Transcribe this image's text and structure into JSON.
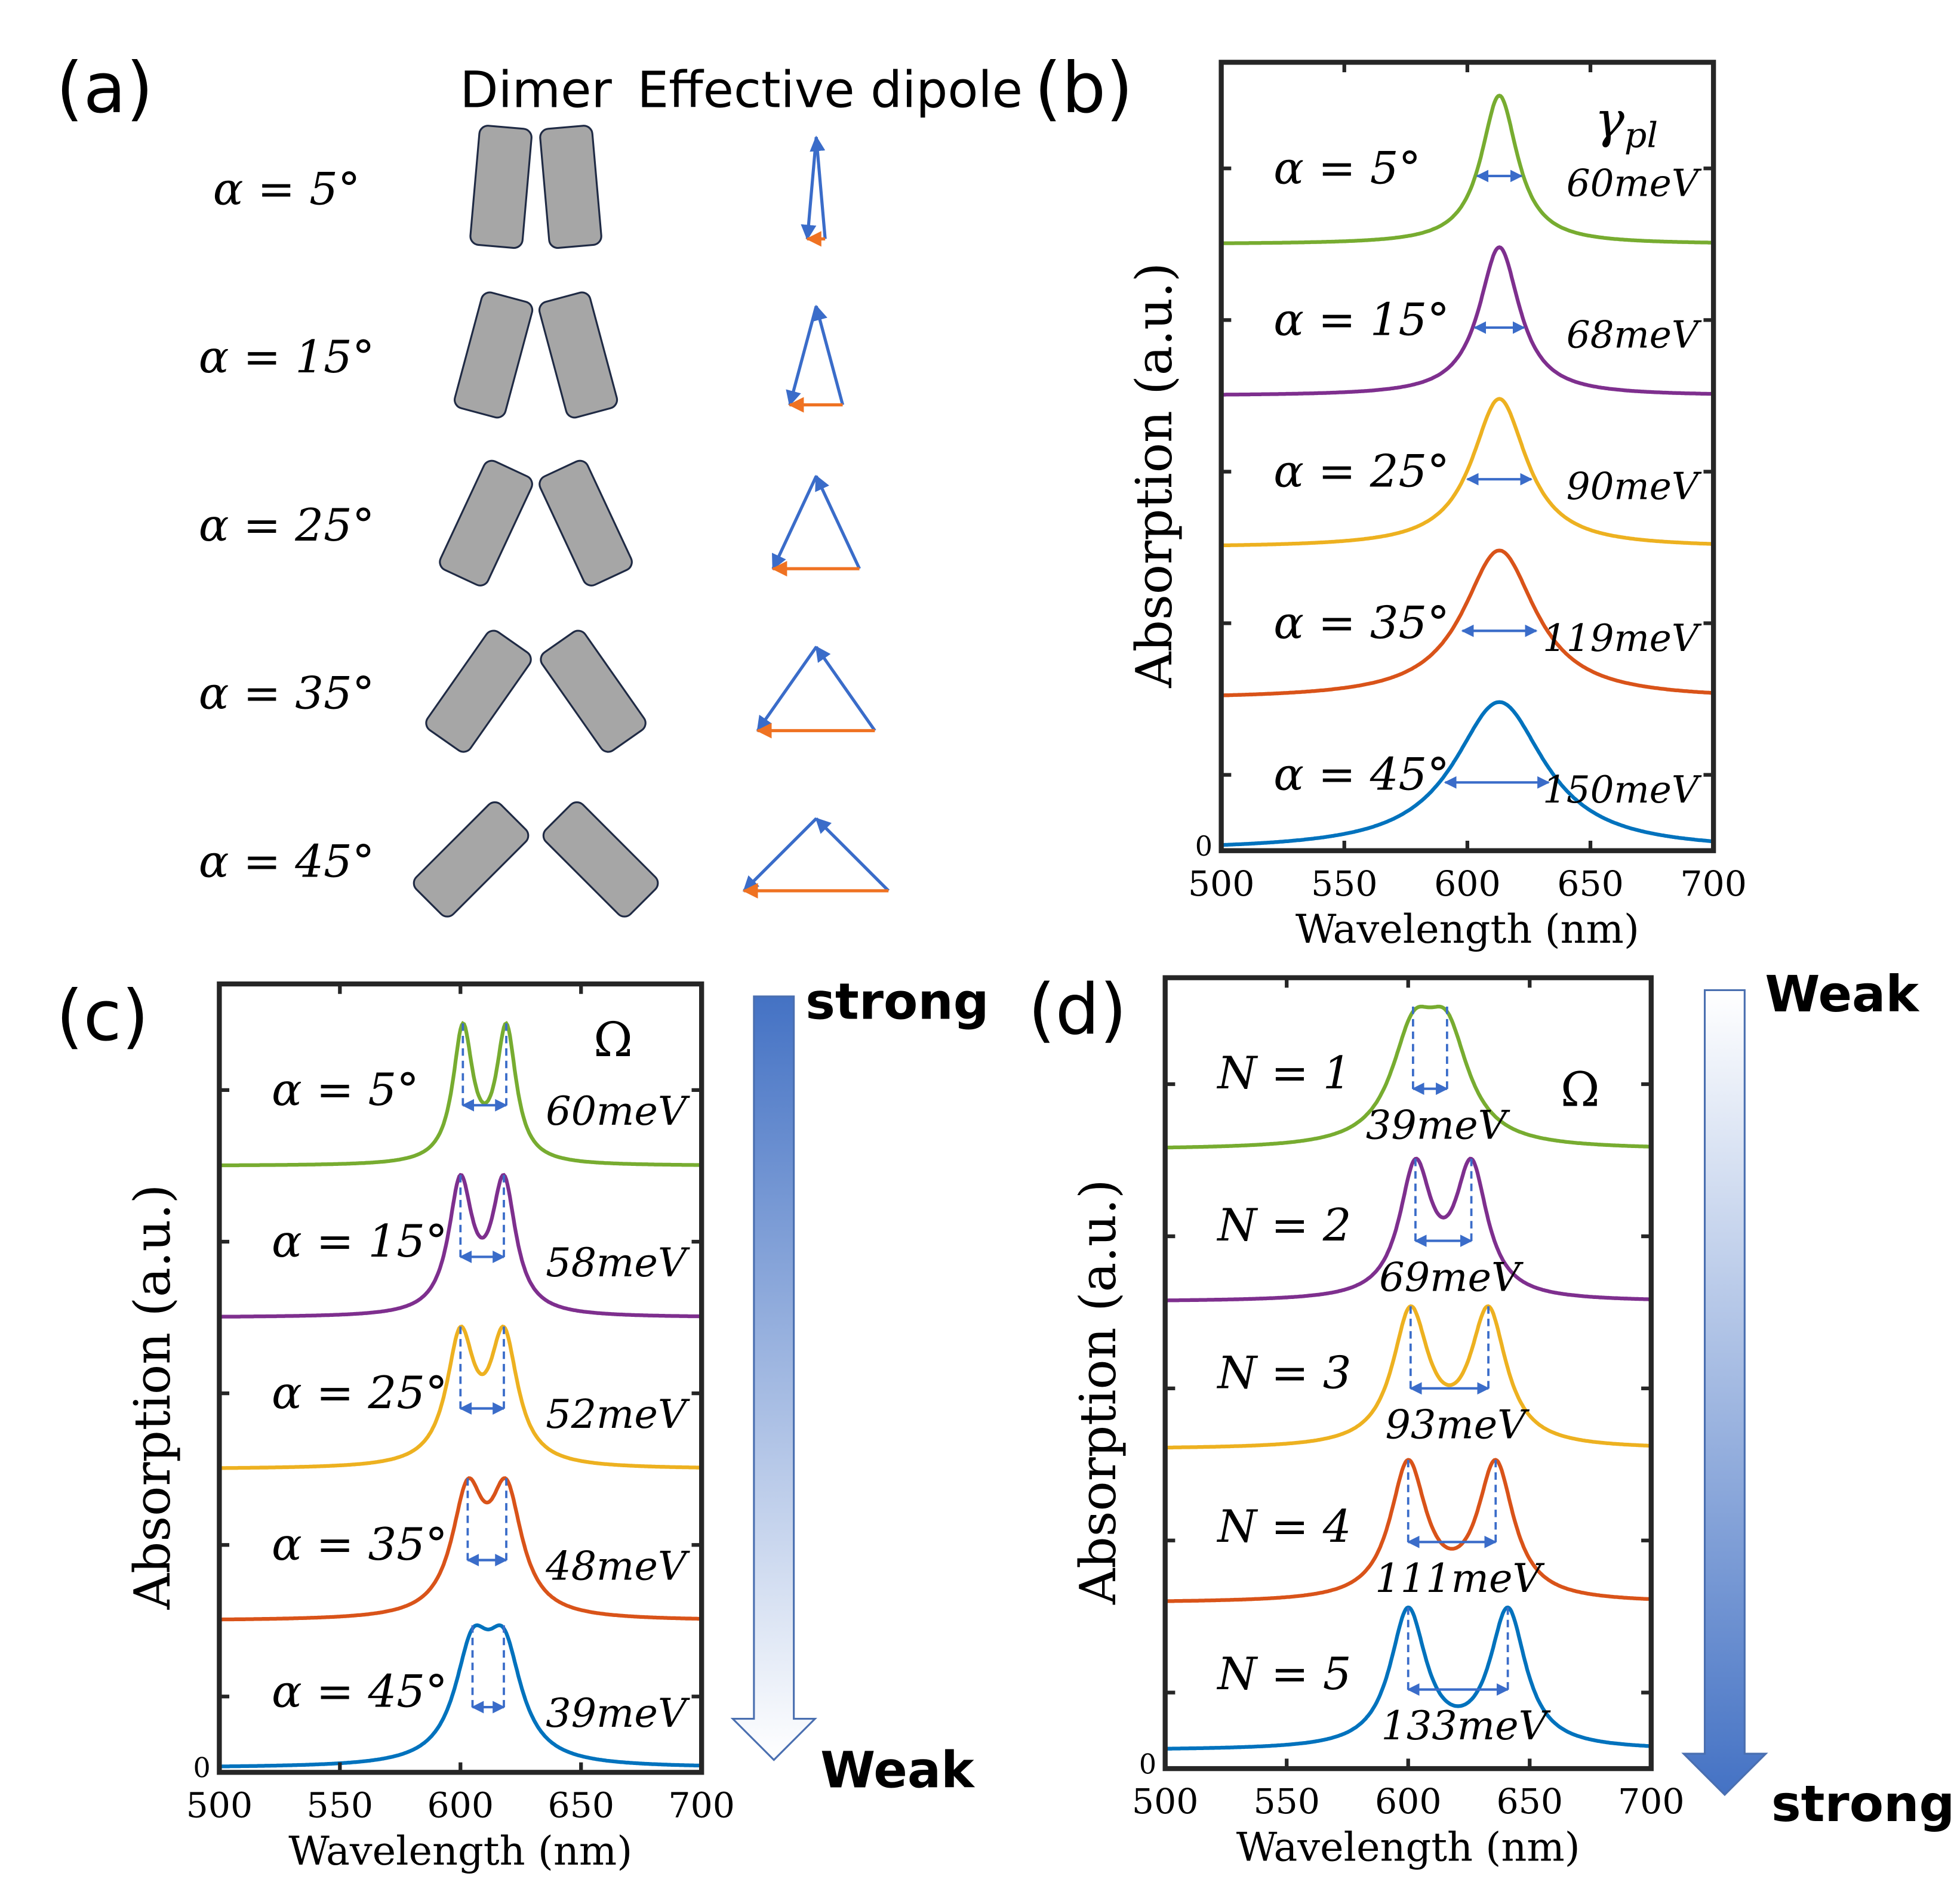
{
  "panel_labels": {
    "a": "(a)",
    "b": "(b)",
    "c": "(c)",
    "d": "(d)"
  },
  "panel_a": {
    "col_dimer": "Dimer",
    "col_dipole": "Effective dipole",
    "rows": [
      {
        "label": "α = 5°",
        "alpha": 5
      },
      {
        "label": "α = 15°",
        "alpha": 15
      },
      {
        "label": "α = 25°",
        "alpha": 25
      },
      {
        "label": "α = 35°",
        "alpha": 35
      },
      {
        "label": "α = 45°",
        "alpha": 45
      }
    ],
    "colors": {
      "rod_fill": "#a6a6a6",
      "rod_stroke": "#1f2a44",
      "dipole": "#3a6cc9",
      "net": "#ef7222"
    }
  },
  "gradient_arrows": {
    "c": {
      "top": "strong",
      "bottom": "Weak",
      "color": "#4472c4"
    },
    "d": {
      "top": "Weak",
      "bottom": "strong",
      "color": "#4472c4"
    }
  },
  "chart_data": [
    {
      "panel": "b",
      "type": "line",
      "xlabel": "Wavelength (nm)",
      "ylabel": "Absorption (a.u.)",
      "xlim": [
        500,
        700
      ],
      "xticks": [
        "500",
        "550",
        "600",
        "650",
        "700"
      ],
      "y_zero_label": "0",
      "header": {
        "symbol": "γ",
        "sub": "pl"
      },
      "series": [
        {
          "name": "α = 5°",
          "width_label": "60meV",
          "color": "#77ac30",
          "offset": 4,
          "peaks": [
            613
          ],
          "fwhm": 18,
          "marker": [
            604,
            622
          ]
        },
        {
          "name": "α = 15°",
          "width_label": "68meV",
          "color": "#7e2f8e",
          "offset": 3,
          "peaks": [
            613
          ],
          "fwhm": 20,
          "marker": [
            603,
            623
          ]
        },
        {
          "name": "α = 25°",
          "width_label": "90meV",
          "color": "#edb120",
          "offset": 2,
          "peaks": [
            613
          ],
          "fwhm": 27,
          "marker": [
            600,
            626
          ]
        },
        {
          "name": "α = 35°",
          "width_label": "119meV",
          "color": "#d95319",
          "offset": 1,
          "peaks": [
            613
          ],
          "fwhm": 36,
          "marker": [
            598,
            628
          ]
        },
        {
          "name": "α = 45°",
          "width_label": "150meV",
          "color": "#0072bd",
          "offset": 0,
          "peaks": [
            613
          ],
          "fwhm": 45,
          "marker": [
            591,
            633
          ]
        }
      ]
    },
    {
      "panel": "c",
      "type": "line",
      "xlabel": "Wavelength (nm)",
      "ylabel": "Absorption (a.u.)",
      "xlim": [
        500,
        700
      ],
      "xticks": [
        "500",
        "550",
        "600",
        "650",
        "700"
      ],
      "y_zero_label": "0",
      "header": {
        "symbol": "Ω",
        "sub": ""
      },
      "series": [
        {
          "name": "α = 5°",
          "width_label": "60meV",
          "color": "#77ac30",
          "offset": 4.0,
          "peaks": [
            601,
            619
          ],
          "fwhm": 10
        },
        {
          "name": "α = 15°",
          "width_label": "58meV",
          "color": "#7e2f8e",
          "offset": 3.0,
          "peaks": [
            600,
            618
          ],
          "fwhm": 12
        },
        {
          "name": "α = 25°",
          "width_label": "52meV",
          "color": "#edb120",
          "offset": 2.0,
          "peaks": [
            600,
            618
          ],
          "fwhm": 14
        },
        {
          "name": "α = 35°",
          "width_label": "48meV",
          "color": "#d95319",
          "offset": 1.0,
          "peaks": [
            603,
            619
          ],
          "fwhm": 16
        },
        {
          "name": "α = 45°",
          "width_label": "39meV",
          "color": "#0072bd",
          "offset": 0.03,
          "peaks": [
            605,
            618
          ],
          "fwhm": 18
        }
      ]
    },
    {
      "panel": "d",
      "type": "line",
      "xlabel": "Wavelength (nm)",
      "ylabel": "Absorption (a.u.)",
      "xlim": [
        500,
        700
      ],
      "xticks": [
        "500",
        "550",
        "600",
        "650",
        "700"
      ],
      "y_zero_label": "0",
      "header": {
        "symbol": "Ω",
        "sub": ""
      },
      "series": [
        {
          "name": "N = 1",
          "width_label": "39meV",
          "color": "#77ac30",
          "offset": 4.07,
          "peaks": [
            602,
            616
          ],
          "fwhm": 22
        },
        {
          "name": "N = 2",
          "width_label": "69meV",
          "color": "#7e2f8e",
          "offset": 3.07,
          "peaks": [
            603,
            626
          ],
          "fwhm": 16
        },
        {
          "name": "N = 3",
          "width_label": "93meV",
          "color": "#edb120",
          "offset": 2.1,
          "peaks": [
            601,
            633
          ],
          "fwhm": 18
        },
        {
          "name": "N = 4",
          "width_label": "111meV",
          "color": "#d95319",
          "offset": 1.09,
          "peaks": [
            600,
            636
          ],
          "fwhm": 18
        },
        {
          "name": "N = 5",
          "width_label": "133meV",
          "color": "#0072bd",
          "offset": 0.12,
          "peaks": [
            600,
            641
          ],
          "fwhm": 18
        }
      ]
    }
  ]
}
